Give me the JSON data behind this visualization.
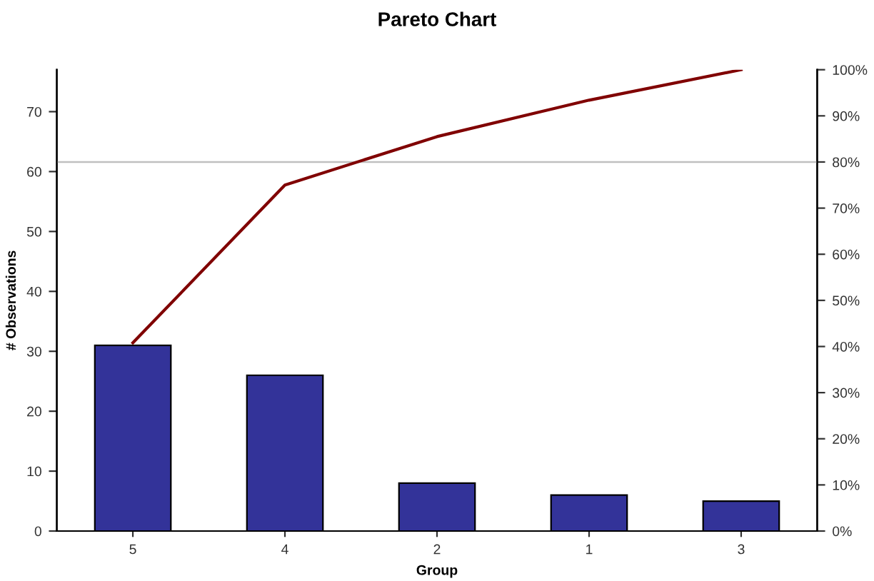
{
  "chart_data": {
    "type": "bar",
    "title": "Pareto Chart",
    "xlabel": "Group",
    "ylabel": "# Observations",
    "categories": [
      "5",
      "4",
      "2",
      "1",
      "3"
    ],
    "series": [
      {
        "color": "#333399",
        "values": [
          31,
          26,
          8,
          6,
          5
        ]
      },
      {
        "type": "line",
        "axis": "y2",
        "color": "#800000",
        "values": [
          40.8,
          75.0,
          85.5,
          93.4,
          100.0
        ]
      }
    ],
    "ylim": [
      0,
      77
    ],
    "yticks": [
      0,
      10,
      20,
      30,
      40,
      50,
      60,
      70
    ],
    "y2lim": [
      0,
      100
    ],
    "y2ticks": [
      {
        "value": 0,
        "label": "0%"
      },
      {
        "value": 10,
        "label": "10%"
      },
      {
        "value": 20,
        "label": "20%"
      },
      {
        "value": 30,
        "label": "30%"
      },
      {
        "value": 40,
        "label": "40%"
      },
      {
        "value": 50,
        "label": "50%"
      },
      {
        "value": 60,
        "label": "60%"
      },
      {
        "value": 70,
        "label": "70%"
      },
      {
        "value": 80,
        "label": "80%"
      },
      {
        "value": 90,
        "label": "90%"
      },
      {
        "value": 100,
        "label": "100%"
      }
    ],
    "ref_lines": [
      {
        "axis": "y2",
        "value": 80,
        "color": "#c0c0c0"
      }
    ],
    "grid": false,
    "legend": false,
    "marker": "none",
    "line_style": "solid"
  }
}
